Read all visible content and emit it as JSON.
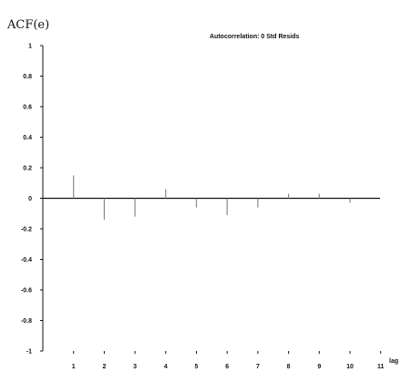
{
  "chart_data": {
    "type": "bar",
    "title": "Autocorrelation: 0 Std Resids",
    "ylabel": "ACF(e)",
    "xlabel": "lag",
    "ylim": [
      -1,
      1
    ],
    "xlim": [
      0,
      11
    ],
    "y_ticks": [
      "1",
      "0.8",
      "0.6",
      "0.4",
      "0.2",
      "0",
      "-0.2",
      "-0.4",
      "-0.6",
      "-0.8",
      "-1"
    ],
    "y_tick_values": [
      1,
      0.8,
      0.6,
      0.4,
      0.2,
      0,
      -0.2,
      -0.4,
      -0.6,
      -0.8,
      -1
    ],
    "x_ticks": [
      "1",
      "2",
      "3",
      "4",
      "5",
      "6",
      "7",
      "8",
      "9",
      "10",
      "11"
    ],
    "categories": [
      1,
      2,
      3,
      4,
      5,
      6,
      7,
      8,
      9,
      10
    ],
    "values": [
      0.15,
      -0.14,
      -0.12,
      0.06,
      -0.06,
      -0.11,
      -0.06,
      0.03,
      0.03,
      -0.03
    ],
    "grid": false,
    "colors": {
      "axis": "#111111",
      "bar": "#888888",
      "zero_line": "#111111"
    }
  }
}
